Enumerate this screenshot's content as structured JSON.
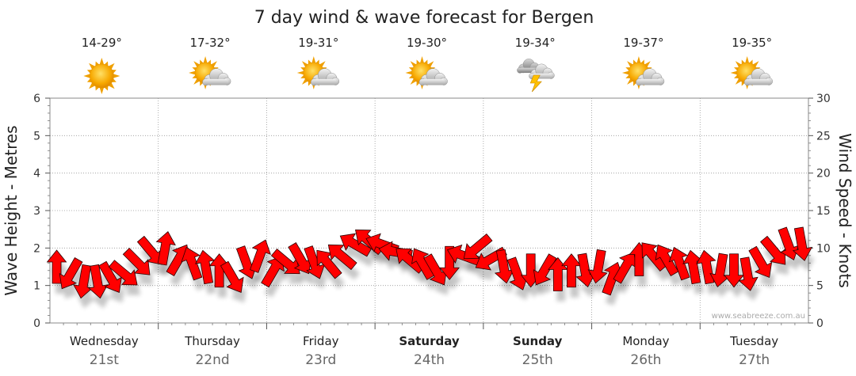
{
  "chart_data": {
    "type": "line",
    "title": "7 day wind & wave forecast for Bergen",
    "ylabel_left": "Wave Height - Metres",
    "ylabel_right": "Wind Speed - Knots",
    "ylim_left": [
      0,
      6
    ],
    "ylim_right": [
      0,
      30
    ],
    "yticks_left": [
      "0",
      "1",
      "2",
      "3",
      "4",
      "5",
      "6"
    ],
    "yticks_right": [
      "0",
      "5",
      "10",
      "15",
      "20",
      "25",
      "30"
    ],
    "days": [
      {
        "day": "Wednesday",
        "date": "21st",
        "temp": "14-29°",
        "icon": "sunny-icon",
        "bold": false
      },
      {
        "day": "Thursday",
        "date": "22nd",
        "temp": "17-32°",
        "icon": "partly-cloudy-icon",
        "bold": false
      },
      {
        "day": "Friday",
        "date": "23rd",
        "temp": "19-31°",
        "icon": "partly-cloudy-icon",
        "bold": false
      },
      {
        "day": "Saturday",
        "date": "24th",
        "temp": "19-30°",
        "icon": "partly-cloudy-icon",
        "bold": true
      },
      {
        "day": "Sunday",
        "date": "25th",
        "temp": "19-34°",
        "icon": "thunderstorm-icon",
        "bold": true
      },
      {
        "day": "Monday",
        "date": "26th",
        "temp": "19-37°",
        "icon": "partly-cloudy-icon",
        "bold": false
      },
      {
        "day": "Tuesday",
        "date": "27th",
        "temp": "19-35°",
        "icon": "partly-cloudy-icon",
        "bold": false
      }
    ],
    "wind_series": {
      "name": "",
      "x_day": [
        0.0,
        0.125,
        0.25,
        0.375,
        0.5,
        0.625,
        0.75,
        0.875,
        1.0,
        1.125,
        1.25,
        1.375,
        1.5,
        1.625,
        1.75,
        1.875,
        2.0,
        2.125,
        2.25,
        2.375,
        2.5,
        2.625,
        2.75,
        2.875,
        3.0,
        3.125,
        3.25,
        3.375,
        3.5,
        3.625,
        3.75,
        3.875,
        4.0,
        4.125,
        4.25,
        4.375,
        4.5,
        4.625,
        4.75,
        4.875,
        5.0,
        5.125,
        5.25,
        5.375,
        5.5,
        5.625,
        5.75,
        5.875,
        6.0,
        6.125,
        6.25,
        6.375,
        6.5,
        6.625,
        6.75,
        6.875
      ],
      "wind_knots": [
        7.5,
        6.5,
        5.5,
        5.5,
        6,
        6.5,
        8,
        9.5,
        10,
        8.5,
        8,
        7.5,
        7,
        6,
        8,
        9,
        7,
        8,
        8.5,
        8,
        8,
        9,
        10.5,
        11,
        10.5,
        9.5,
        8.5,
        8,
        7,
        8,
        9,
        10,
        8.5,
        7.5,
        6.5,
        7,
        7,
        6.5,
        7,
        7,
        7.5,
        6,
        7.5,
        8.5,
        9,
        8.5,
        8,
        7.5,
        7.5,
        7,
        7,
        6.5,
        8,
        9.5,
        10.5,
        10.5
      ],
      "direction_deg": [
        270,
        120,
        100,
        80,
        60,
        40,
        45,
        50,
        280,
        300,
        250,
        260,
        270,
        60,
        70,
        290,
        300,
        40,
        60,
        70,
        230,
        220,
        210,
        220,
        200,
        190,
        220,
        240,
        60,
        90,
        200,
        140,
        150,
        80,
        70,
        90,
        120,
        270,
        270,
        80,
        100,
        290,
        300,
        270,
        230,
        240,
        250,
        260,
        260,
        100,
        90,
        80,
        60,
        50,
        70,
        80
      ],
      "dir_unit": "degrees clockwise from east (arrow pointing direction)"
    }
  },
  "credit": "www.seabreeze.com.au"
}
